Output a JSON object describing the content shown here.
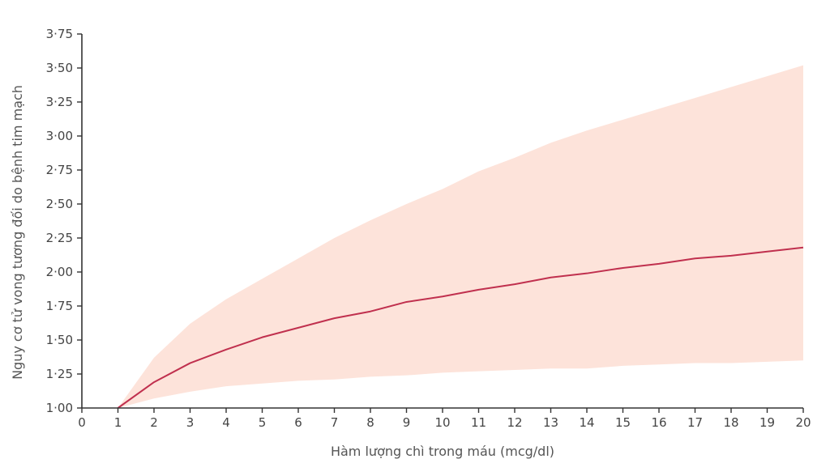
{
  "chart_data": {
    "type": "line",
    "title": "",
    "xlabel": "Hàm lượng chì trong máu (mcg/dl)",
    "ylabel": "Nguy cơ tử vong tương đối do bệnh tim mạch",
    "xlim": [
      0,
      20
    ],
    "ylim": [
      1.0,
      3.75
    ],
    "x_ticks": [
      "0",
      "1",
      "2",
      "3",
      "4",
      "5",
      "6",
      "7",
      "8",
      "9",
      "10",
      "11",
      "12",
      "13",
      "14",
      "15",
      "16",
      "17",
      "18",
      "19",
      "20"
    ],
    "y_ticks": [
      "1·00",
      "1·25",
      "1·50",
      "1·75",
      "2·00",
      "2·25",
      "2·50",
      "2·75",
      "3·00",
      "3·25",
      "3·50",
      "3·75"
    ],
    "grid": false,
    "series": [
      {
        "role": "estimate",
        "color": "#c0304e",
        "x": [
          1,
          2,
          3,
          4,
          5,
          6,
          7,
          8,
          9,
          10,
          11,
          12,
          13,
          14,
          15,
          16,
          17,
          18,
          19,
          20
        ],
        "values": [
          1.0,
          1.19,
          1.33,
          1.43,
          1.52,
          1.59,
          1.66,
          1.71,
          1.78,
          1.82,
          1.87,
          1.91,
          1.96,
          1.99,
          2.03,
          2.06,
          2.1,
          2.12,
          2.15,
          2.18
        ]
      }
    ],
    "confidence_band": {
      "color": "#fde3da",
      "x": [
        1,
        2,
        3,
        4,
        5,
        6,
        7,
        8,
        9,
        10,
        11,
        12,
        13,
        14,
        15,
        16,
        17,
        18,
        19,
        20
      ],
      "upper": [
        1.0,
        1.37,
        1.62,
        1.8,
        1.95,
        2.1,
        2.25,
        2.38,
        2.5,
        2.61,
        2.74,
        2.84,
        2.95,
        3.04,
        3.12,
        3.2,
        3.28,
        3.36,
        3.44,
        3.52
      ],
      "lower": [
        1.0,
        1.07,
        1.12,
        1.16,
        1.18,
        1.2,
        1.21,
        1.23,
        1.24,
        1.26,
        1.27,
        1.28,
        1.29,
        1.29,
        1.31,
        1.32,
        1.33,
        1.33,
        1.34,
        1.35
      ]
    }
  }
}
